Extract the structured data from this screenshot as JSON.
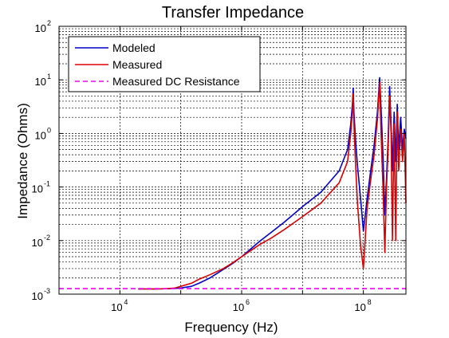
{
  "chart_data": {
    "type": "line",
    "title": "Transfer Impedance",
    "xlabel": "Frequency (Hz)",
    "ylabel": "Impedance (Ohms)",
    "xscale": "log",
    "yscale": "log",
    "xlim": [
      1000,
      500000000
    ],
    "ylim": [
      0.001,
      100
    ],
    "grid": true,
    "legend_position": "top-left",
    "x_ticks": [
      {
        "value": 10000,
        "base": "10",
        "exp": "4"
      },
      {
        "value": 1000000,
        "base": "10",
        "exp": "6"
      },
      {
        "value": 100000000,
        "base": "10",
        "exp": "8"
      }
    ],
    "y_ticks": [
      {
        "value": 0.001,
        "base": "10",
        "exp": "-3"
      },
      {
        "value": 0.01,
        "base": "10",
        "exp": "-2"
      },
      {
        "value": 0.1,
        "base": "10",
        "exp": "-1"
      },
      {
        "value": 1,
        "base": "10",
        "exp": "0"
      },
      {
        "value": 10,
        "base": "10",
        "exp": "1"
      },
      {
        "value": 100,
        "base": "10",
        "exp": "2"
      }
    ],
    "series": [
      {
        "name": "Modeled",
        "color": "#0000cc",
        "style": "solid",
        "x": [
          20000,
          40000,
          60000,
          80000,
          100000,
          150000,
          200000,
          300000,
          500000,
          700000,
          1000000,
          2000000,
          3000000,
          5000000,
          10000000,
          20000000,
          40000000,
          55000000,
          62000000,
          66000000,
          68000000,
          70000000,
          74000000,
          80000000,
          90000000,
          100000000,
          115000000,
          130000000,
          150000000,
          170000000,
          185000000,
          195000000,
          210000000,
          225000000,
          240000000,
          255000000,
          270000000,
          285000000,
          300000000,
          320000000,
          340000000,
          360000000,
          380000000,
          410000000,
          440000000,
          470000000,
          500000000
        ],
        "values": [
          0.00125,
          0.00125,
          0.00126,
          0.00128,
          0.0013,
          0.0014,
          0.0016,
          0.002,
          0.0029,
          0.0037,
          0.005,
          0.0098,
          0.014,
          0.022,
          0.043,
          0.08,
          0.2,
          0.5,
          1.5,
          3.5,
          7.0,
          2.5,
          0.8,
          0.25,
          0.06,
          0.015,
          0.06,
          0.18,
          0.6,
          2.5,
          11.0,
          3.0,
          0.4,
          0.03,
          0.15,
          0.8,
          7.5,
          1.5,
          0.2,
          2.5,
          0.3,
          3.5,
          0.5,
          2.0,
          0.5,
          1.2,
          0.8
        ]
      },
      {
        "name": "Measured",
        "color": "#dd0000",
        "style": "solid",
        "x": [
          20000,
          40000,
          60000,
          80000,
          100000,
          150000,
          200000,
          300000,
          500000,
          700000,
          1000000,
          2000000,
          3000000,
          5000000,
          10000000,
          20000000,
          40000000,
          55000000,
          62000000,
          66000000,
          68000000,
          70000000,
          74000000,
          80000000,
          90000000,
          100000000,
          115000000,
          130000000,
          150000000,
          170000000,
          185000000,
          195000000,
          210000000,
          225000000,
          240000000,
          255000000,
          270000000,
          285000000,
          300000000,
          320000000,
          340000000,
          360000000,
          380000000,
          410000000,
          440000000,
          470000000,
          500000000
        ],
        "values": [
          0.00125,
          0.00125,
          0.00127,
          0.0013,
          0.0014,
          0.0016,
          0.0019,
          0.0023,
          0.003,
          0.0038,
          0.005,
          0.0085,
          0.011,
          0.016,
          0.028,
          0.05,
          0.12,
          0.3,
          1.0,
          2.5,
          5.5,
          1.5,
          0.3,
          0.05,
          0.008,
          0.003,
          0.04,
          0.12,
          0.4,
          1.8,
          9.0,
          1.0,
          0.1,
          0.006,
          0.1,
          0.5,
          5.0,
          1.0,
          0.01,
          1.5,
          0.01,
          2.5,
          0.2,
          1.2,
          0.3,
          1.0,
          0.05
        ]
      },
      {
        "name": "Measured DC Resistance",
        "color": "#ee00ee",
        "style": "dashed",
        "x": [
          1000,
          500000000
        ],
        "values": [
          0.00127,
          0.00127
        ]
      }
    ]
  }
}
